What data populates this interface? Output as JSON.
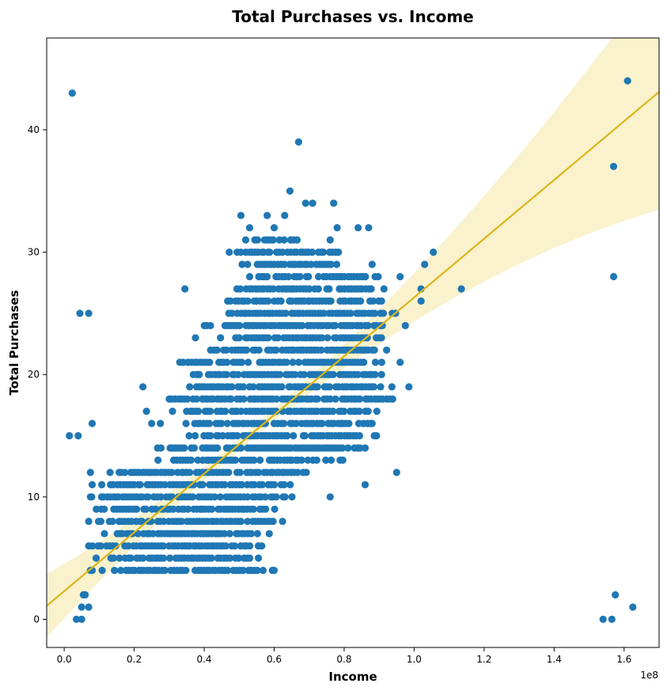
{
  "chart_data": {
    "type": "scatter",
    "title": "Total Purchases vs. Income",
    "xlabel": "Income",
    "ylabel": "Total Purchases",
    "x_offset_label": "1e8",
    "x_scale_factor": 100000000,
    "xlim": [
      -0.05,
      1.7
    ],
    "ylim": [
      -2.3,
      47.5
    ],
    "x_ticks": [
      0.0,
      0.2,
      0.4,
      0.6,
      0.8,
      1.0,
      1.2,
      1.4,
      1.6
    ],
    "x_tick_labels": [
      "0.0",
      "0.2",
      "0.4",
      "0.6",
      "0.8",
      "1.0",
      "1.2",
      "1.4",
      "1.6"
    ],
    "y_ticks": [
      0,
      10,
      20,
      30,
      40
    ],
    "y_tick_labels": [
      "0",
      "10",
      "20",
      "30",
      "40"
    ],
    "grid": false,
    "legend": "none",
    "colors": {
      "points": "#1f77b4",
      "regression": "#dbb519",
      "confidence_band": "#f7eebc"
    },
    "series": [
      {
        "points": [
          [
            0.023,
            43
          ],
          [
            0.015,
            15
          ],
          [
            0.04,
            15
          ],
          [
            0.045,
            25
          ],
          [
            0.07,
            25
          ],
          [
            0.08,
            16
          ],
          [
            0.035,
            0
          ],
          [
            0.05,
            0
          ],
          [
            0.05,
            1
          ],
          [
            0.055,
            2
          ],
          [
            0.06,
            2
          ],
          [
            0.07,
            1
          ],
          [
            0.075,
            4
          ],
          [
            0.08,
            4
          ],
          [
            0.07,
            6
          ],
          [
            0.07,
            8
          ],
          [
            0.075,
            10
          ],
          [
            0.08,
            11
          ],
          [
            0.075,
            12
          ],
          [
            0.225,
            19
          ],
          [
            0.235,
            17
          ],
          [
            0.25,
            16
          ],
          [
            0.275,
            16
          ],
          [
            0.345,
            27
          ],
          [
            0.375,
            23
          ],
          [
            0.505,
            33
          ],
          [
            0.53,
            32
          ],
          [
            0.58,
            33
          ],
          [
            0.6,
            32
          ],
          [
            0.63,
            33
          ],
          [
            0.645,
            35
          ],
          [
            0.67,
            39
          ],
          [
            0.69,
            34
          ],
          [
            0.71,
            34
          ],
          [
            0.77,
            34
          ],
          [
            0.76,
            31
          ],
          [
            0.78,
            32
          ],
          [
            0.84,
            32
          ],
          [
            0.87,
            32
          ],
          [
            0.88,
            29
          ],
          [
            0.96,
            28
          ],
          [
            1.02,
            27
          ],
          [
            1.02,
            26
          ],
          [
            1.03,
            29
          ],
          [
            1.055,
            30
          ],
          [
            0.95,
            12
          ],
          [
            0.86,
            11
          ],
          [
            0.76,
            10
          ],
          [
            1.135,
            27
          ],
          [
            1.57,
            37
          ],
          [
            1.57,
            28
          ],
          [
            1.61,
            44
          ],
          [
            1.575,
            2
          ],
          [
            1.54,
            0
          ],
          [
            1.565,
            0
          ],
          [
            1.625,
            1
          ],
          [
            0.6,
            4
          ],
          [
            0.535,
            4
          ],
          [
            0.555,
            5
          ],
          [
            0.985,
            19
          ],
          [
            0.96,
            21
          ],
          [
            0.975,
            24
          ],
          [
            0.88,
            16
          ],
          [
            0.86,
            14
          ]
        ],
        "clusters": [
          {
            "y": 4,
            "x_range": [
              0.11,
              0.6
            ]
          },
          {
            "y": 5,
            "x_range": [
              0.09,
              0.55
            ]
          },
          {
            "y": 6,
            "x_range": [
              0.08,
              0.57
            ]
          },
          {
            "y": 7,
            "x_range": [
              0.1,
              0.59
            ]
          },
          {
            "y": 8,
            "x_range": [
              0.08,
              0.64
            ]
          },
          {
            "y": 9,
            "x_range": [
              0.09,
              0.6
            ]
          },
          {
            "y": 10,
            "x_range": [
              0.08,
              0.65
            ]
          },
          {
            "y": 11,
            "x_range": [
              0.1,
              0.66
            ]
          },
          {
            "y": 12,
            "x_range": [
              0.13,
              0.7
            ]
          },
          {
            "y": 13,
            "x_range": [
              0.27,
              0.8
            ]
          },
          {
            "y": 14,
            "x_range": [
              0.26,
              0.85
            ]
          },
          {
            "y": 15,
            "x_range": [
              0.35,
              0.9
            ]
          },
          {
            "y": 16,
            "x_range": [
              0.33,
              0.88
            ]
          },
          {
            "y": 17,
            "x_range": [
              0.3,
              0.92
            ]
          },
          {
            "y": 18,
            "x_range": [
              0.3,
              0.96
            ]
          },
          {
            "y": 19,
            "x_range": [
              0.36,
              0.94
            ]
          },
          {
            "y": 20,
            "x_range": [
              0.37,
              0.93
            ]
          },
          {
            "y": 21,
            "x_range": [
              0.33,
              0.92
            ]
          },
          {
            "y": 22,
            "x_range": [
              0.42,
              0.93
            ]
          },
          {
            "y": 23,
            "x_range": [
              0.44,
              0.91
            ]
          },
          {
            "y": 24,
            "x_range": [
              0.4,
              0.92
            ]
          },
          {
            "y": 25,
            "x_range": [
              0.47,
              0.95
            ]
          },
          {
            "y": 26,
            "x_range": [
              0.44,
              0.92
            ]
          },
          {
            "y": 27,
            "x_range": [
              0.47,
              0.92
            ]
          },
          {
            "y": 28,
            "x_range": [
              0.53,
              0.9
            ]
          },
          {
            "y": 29,
            "x_range": [
              0.5,
              0.82
            ]
          },
          {
            "y": 30,
            "x_range": [
              0.47,
              0.79
            ]
          },
          {
            "y": 31,
            "x_range": [
              0.52,
              0.67
            ]
          }
        ]
      }
    ],
    "regression_line": {
      "x": [
        -0.05,
        1.7
      ],
      "y": [
        1.1,
        43.1
      ]
    }
  }
}
